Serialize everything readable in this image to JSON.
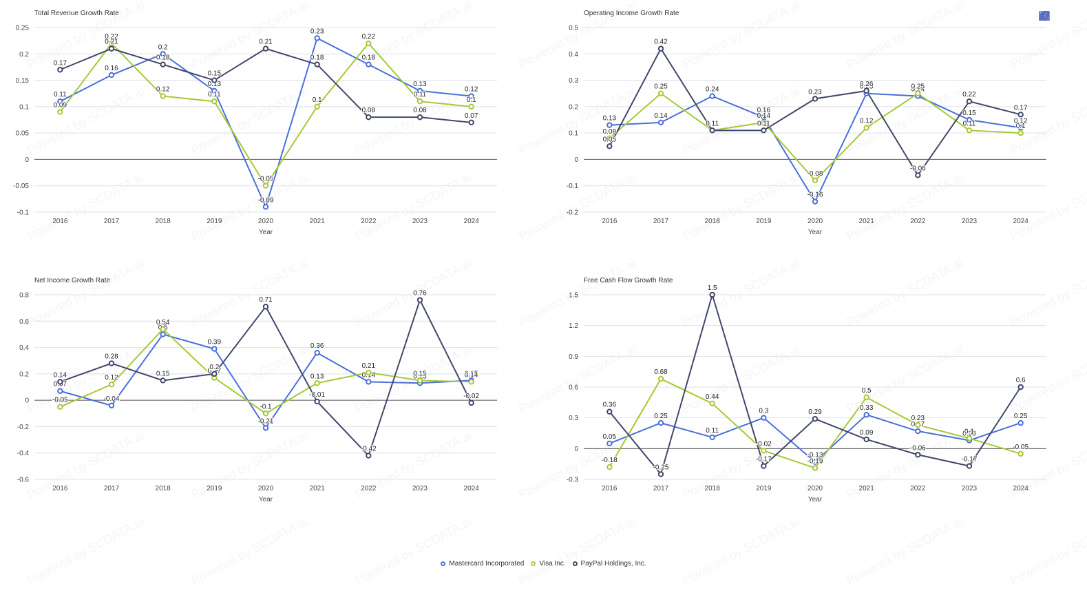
{
  "toolbar": {
    "icons": [
      "line-chart-icon",
      "tag-icon",
      "table-icon",
      "download-icon",
      "refresh-icon"
    ]
  },
  "watermark_text": "Powered by SCDATA.ai",
  "legend": [
    {
      "name": "Mastercard Incorporated",
      "color": "#4a6fdc"
    },
    {
      "name": "Visa Inc.",
      "color": "#a6c934"
    },
    {
      "name": "PayPal Holdings, Inc.",
      "color": "#41476b"
    }
  ],
  "chart_data": [
    {
      "type": "line",
      "title": "Total Revenue Growth Rate",
      "xlabel": "Year",
      "ylabel": "",
      "categories": [
        "2016",
        "2017",
        "2018",
        "2019",
        "2020",
        "2021",
        "2022",
        "2023",
        "2024"
      ],
      "ylim": [
        -0.1,
        0.25
      ],
      "yticks": [
        -0.1,
        -0.05,
        0,
        0.05,
        0.1,
        0.15,
        0.2,
        0.25
      ],
      "grid": true,
      "series": [
        {
          "name": "Mastercard Incorporated",
          "values": [
            0.11,
            0.16,
            0.2,
            0.13,
            -0.09,
            0.23,
            0.18,
            0.13,
            0.12
          ]
        },
        {
          "name": "Visa Inc.",
          "values": [
            0.09,
            0.22,
            0.12,
            0.11,
            -0.05,
            0.1,
            0.22,
            0.11,
            0.1
          ]
        },
        {
          "name": "PayPal Holdings, Inc.",
          "values": [
            0.17,
            0.21,
            0.18,
            0.15,
            0.21,
            0.18,
            0.08,
            0.08,
            0.07
          ]
        }
      ]
    },
    {
      "type": "line",
      "title": "Operating Income Growth Rate",
      "xlabel": "Year",
      "ylabel": "",
      "categories": [
        "2016",
        "2017",
        "2018",
        "2019",
        "2020",
        "2021",
        "2022",
        "2023",
        "2024"
      ],
      "ylim": [
        -0.2,
        0.5
      ],
      "yticks": [
        -0.2,
        -0.1,
        0,
        0.1,
        0.2,
        0.3,
        0.4,
        0.5
      ],
      "grid": true,
      "series": [
        {
          "name": "Mastercard Incorporated",
          "values": [
            0.13,
            0.14,
            0.24,
            0.16,
            -0.16,
            0.25,
            0.24,
            0.15,
            0.12
          ]
        },
        {
          "name": "Visa Inc.",
          "values": [
            0.08,
            0.25,
            0.11,
            0.14,
            -0.08,
            0.12,
            0.25,
            0.11,
            0.1
          ]
        },
        {
          "name": "PayPal Holdings, Inc.",
          "values": [
            0.05,
            0.42,
            0.11,
            0.11,
            0.23,
            0.26,
            -0.06,
            0.22,
            0.17
          ]
        }
      ]
    },
    {
      "type": "line",
      "title": "Net Income Growth Rate",
      "xlabel": "Year",
      "ylabel": "",
      "categories": [
        "2016",
        "2017",
        "2018",
        "2019",
        "2020",
        "2021",
        "2022",
        "2023",
        "2024"
      ],
      "ylim": [
        -0.6,
        0.8
      ],
      "yticks": [
        -0.6,
        -0.4,
        -0.2,
        0,
        0.2,
        0.4,
        0.6,
        0.8
      ],
      "grid": true,
      "series": [
        {
          "name": "Mastercard Incorporated",
          "values": [
            0.07,
            -0.04,
            0.5,
            0.39,
            -0.21,
            0.36,
            0.14,
            0.13,
            0.15
          ]
        },
        {
          "name": "Visa Inc.",
          "values": [
            -0.05,
            0.12,
            0.54,
            0.17,
            -0.1,
            0.13,
            0.21,
            0.15,
            0.14
          ]
        },
        {
          "name": "PayPal Holdings, Inc.",
          "values": [
            0.14,
            0.28,
            0.15,
            0.2,
            0.71,
            -0.01,
            -0.42,
            0.76,
            -0.02
          ]
        }
      ]
    },
    {
      "type": "line",
      "title": "Free Cash Flow Growth Rate",
      "xlabel": "Year",
      "ylabel": "",
      "categories": [
        "2016",
        "2017",
        "2018",
        "2019",
        "2020",
        "2021",
        "2022",
        "2023",
        "2024"
      ],
      "ylim": [
        -0.3,
        1.5
      ],
      "yticks": [
        -0.3,
        0,
        0.3,
        0.6,
        0.9,
        1.2,
        1.5
      ],
      "grid": true,
      "series": [
        {
          "name": "Mastercard Incorporated",
          "values": [
            0.05,
            0.25,
            0.11,
            0.3,
            -0.13,
            0.33,
            0.17,
            0.08,
            0.25
          ]
        },
        {
          "name": "Visa Inc.",
          "values": [
            -0.18,
            0.68,
            0.44,
            -0.02,
            -0.19,
            0.5,
            0.23,
            0.1,
            -0.05
          ]
        },
        {
          "name": "PayPal Holdings, Inc.",
          "values": [
            0.36,
            -0.25,
            1.5,
            -0.17,
            0.29,
            0.09,
            -0.06,
            -0.17,
            0.6
          ]
        }
      ]
    }
  ]
}
